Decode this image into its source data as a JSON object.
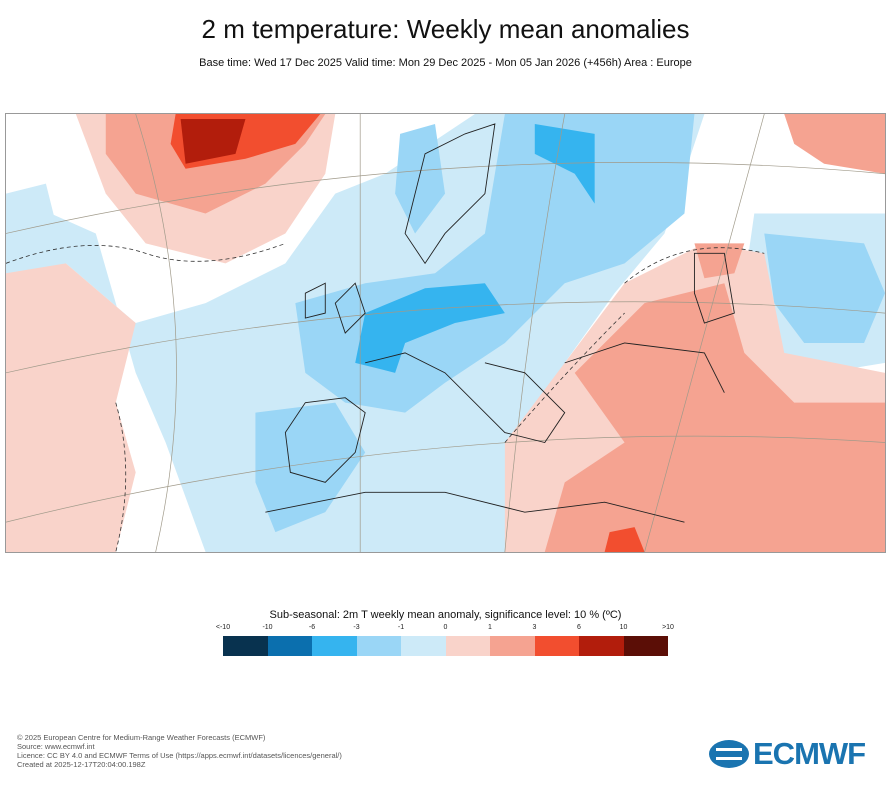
{
  "header": {
    "title": "2 m temperature: Weekly mean anomalies",
    "subtitle": "Base time: Wed 17 Dec 2025 Valid time: Mon 29 Dec 2025 - Mon 05 Jan 2026 (+456h) Area : Europe"
  },
  "map": {
    "area": "Europe",
    "projection": "conic",
    "dashed_contour": "significance level 10 %"
  },
  "legend": {
    "title": "Sub-seasonal: 2m T weekly mean anomaly, significance level: 10 % (ºC)",
    "labels": [
      "<-10",
      "-10",
      "-6",
      "-3",
      "-1",
      "0",
      "1",
      "3",
      "6",
      "10",
      ">10"
    ],
    "colors": [
      "#08324f",
      "#0b6fae",
      "#35b4ef",
      "#9ad6f6",
      "#cdeaf8",
      "#f9d3ca",
      "#f5a391",
      "#f24e2f",
      "#b21d0c",
      "#5b0e06"
    ]
  },
  "footer": {
    "lines": [
      "© 2025 European Centre for Medium-Range Weather Forecasts (ECMWF)",
      "Source: www.ecmwf.int",
      "Licence: CC BY 4.0 and ECMWF Terms of Use (https://apps.ecmwf.int/datasets/licences/general/)",
      "Created at 2025-12-17T20:04:00.198Z"
    ],
    "logo": "ECMWF"
  }
}
